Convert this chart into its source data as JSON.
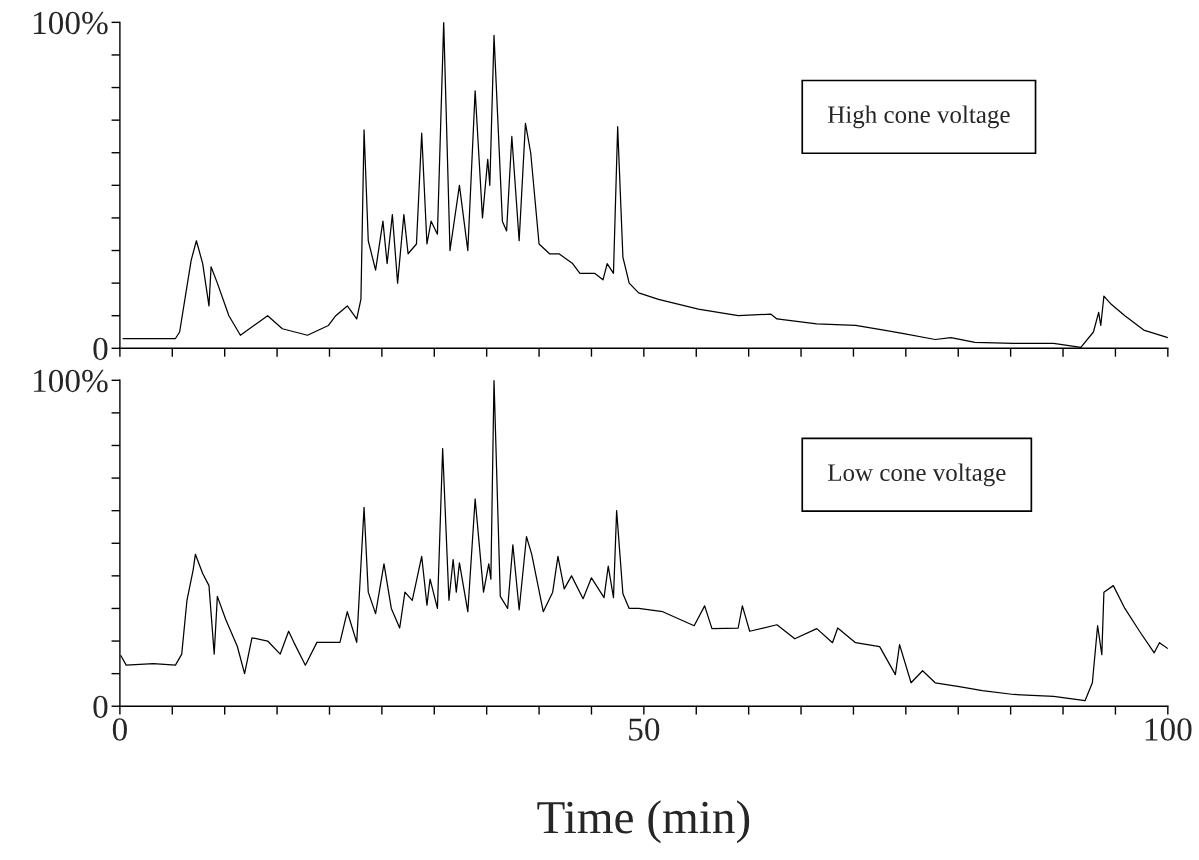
{
  "chart_data": [
    {
      "type": "line",
      "annotations": [
        "High cone voltage"
      ],
      "xlim": [
        0,
        100
      ],
      "ylim": [
        0,
        100
      ],
      "xticks": [
        {
          "value": 0,
          "label": null
        },
        {
          "value": 5,
          "label": null
        },
        {
          "value": 10,
          "label": null
        },
        {
          "value": 15,
          "label": null
        },
        {
          "value": 20,
          "label": null
        },
        {
          "value": 25,
          "label": null
        },
        {
          "value": 30,
          "label": null
        },
        {
          "value": 35,
          "label": null
        },
        {
          "value": 40,
          "label": null
        },
        {
          "value": 45,
          "label": null
        },
        {
          "value": 50,
          "label": null
        },
        {
          "value": 55,
          "label": null
        },
        {
          "value": 60,
          "label": null
        },
        {
          "value": 65,
          "label": null
        },
        {
          "value": 70,
          "label": null
        },
        {
          "value": 75,
          "label": null
        },
        {
          "value": 80,
          "label": null
        },
        {
          "value": 85,
          "label": null
        },
        {
          "value": 90,
          "label": null
        },
        {
          "value": 95,
          "label": null
        },
        {
          "value": 100,
          "label": null
        }
      ],
      "yticks": [
        0,
        {
          "value": 10,
          "label": null
        },
        {
          "value": 20,
          "label": null
        },
        {
          "value": 30,
          "label": null
        },
        {
          "value": 40,
          "label": null
        },
        {
          "value": 50,
          "label": null
        },
        {
          "value": 60,
          "label": null
        },
        {
          "value": 70,
          "label": null
        },
        {
          "value": 80,
          "label": null
        },
        {
          "value": 90,
          "label": null
        },
        {
          "value": 100,
          "label": "100%"
        }
      ],
      "tick_labels": "y",
      "series": [
        {
          "color": "#000000",
          "x": [
            0.3,
            5.3,
            5.7,
            6.3,
            6.8,
            7.3,
            7.9,
            8.5,
            8.7,
            9.3,
            10.4,
            11.5,
            14.1,
            15.5,
            17.9,
            19.9,
            20.6,
            21.7,
            22.6,
            23.0,
            23.3,
            23.7,
            24.4,
            25.1,
            25.5,
            26.0,
            26.5,
            27.1,
            27.5,
            28.3,
            28.8,
            29.3,
            29.7,
            30.3,
            30.9,
            31.5,
            32.4,
            33.2,
            33.9,
            34.6,
            35.1,
            35.3,
            35.7,
            36.5,
            36.9,
            37.4,
            38.1,
            38.7,
            39.2,
            40.0,
            41.0,
            41.9,
            43.2,
            43.9,
            45.3,
            46.1,
            46.5,
            47.1,
            47.5,
            48.0,
            48.6,
            49.5,
            51.4,
            55.2,
            59.0,
            62.1,
            62.7,
            66.5,
            70.2,
            72.9,
            74.8,
            77.8,
            79.3,
            81.6,
            85.3,
            89.1,
            91.7,
            92.9,
            93.4,
            93.6,
            93.9,
            94.6,
            95.9,
            97.7,
            100
          ],
          "values": [
            3,
            3,
            5,
            17,
            27,
            33,
            26,
            13,
            25,
            20,
            10,
            4,
            10,
            6,
            4,
            7,
            10,
            13,
            9,
            15,
            67,
            33,
            24,
            39,
            26,
            41,
            20,
            41,
            29,
            32,
            66,
            32,
            39,
            35,
            100,
            30,
            50,
            30,
            79,
            40,
            58,
            50,
            96,
            39,
            36,
            65,
            33,
            69,
            60,
            32,
            29,
            29,
            26,
            23,
            23,
            21,
            26,
            23,
            68,
            28,
            20,
            17,
            15,
            12,
            10,
            10.5,
            9,
            7.5,
            7,
            5.6,
            4.5,
            2.7,
            3.3,
            1.8,
            1.5,
            1.5,
            0.3,
            5,
            11,
            7,
            16,
            13.5,
            10,
            5.6,
            3.3
          ]
        }
      ]
    },
    {
      "type": "line",
      "annotations": [
        "Low cone voltage"
      ],
      "xlabel": "Time (min)",
      "xlim": [
        0,
        100
      ],
      "ylim": [
        0,
        100
      ],
      "xticks": [
        0,
        {
          "value": 5,
          "label": null
        },
        {
          "value": 10,
          "label": null
        },
        {
          "value": 15,
          "label": null
        },
        {
          "value": 20,
          "label": null
        },
        {
          "value": 25,
          "label": null
        },
        {
          "value": 30,
          "label": null
        },
        {
          "value": 35,
          "label": null
        },
        {
          "value": 40,
          "label": null
        },
        {
          "value": 45,
          "label": null
        },
        50,
        {
          "value": 55,
          "label": null
        },
        {
          "value": 60,
          "label": null
        },
        {
          "value": 65,
          "label": null
        },
        {
          "value": 70,
          "label": null
        },
        {
          "value": 75,
          "label": null
        },
        {
          "value": 80,
          "label": null
        },
        {
          "value": 85,
          "label": null
        },
        {
          "value": 90,
          "label": null
        },
        {
          "value": 95,
          "label": null
        },
        100
      ],
      "yticks": [
        0,
        {
          "value": 10,
          "label": null
        },
        {
          "value": 20,
          "label": null
        },
        {
          "value": 30,
          "label": null
        },
        {
          "value": 40,
          "label": null
        },
        {
          "value": 50,
          "label": null
        },
        {
          "value": 60,
          "label": null
        },
        {
          "value": 70,
          "label": null
        },
        {
          "value": 80,
          "label": null
        },
        {
          "value": 90,
          "label": null
        },
        {
          "value": 100,
          "label": "100%"
        }
      ],
      "series": [
        {
          "color": "#000000",
          "x": [
            0.1,
            0.6,
            3.2,
            5.3,
            5.9,
            6.4,
            7.0,
            7.2,
            7.9,
            8.5,
            9.0,
            9.3,
            10.1,
            11.2,
            11.9,
            12.6,
            14.1,
            15.3,
            16.1,
            16.6,
            17.7,
            18.8,
            21.0,
            21.7,
            22.6,
            23.3,
            23.7,
            24.4,
            25.2,
            25.9,
            26.7,
            27.2,
            27.9,
            28.8,
            29.3,
            29.6,
            30.3,
            30.8,
            31.4,
            31.8,
            32.1,
            32.4,
            33.2,
            33.9,
            34.7,
            35.2,
            35.4,
            35.7,
            36.3,
            37.0,
            37.5,
            38.1,
            38.8,
            39.3,
            40.4,
            41.3,
            41.8,
            42.4,
            43.1,
            44.2,
            45.0,
            46.2,
            46.6,
            47.1,
            47.4,
            48.0,
            48.6,
            49.5,
            51.8,
            54.8,
            55.8,
            56.5,
            59.0,
            59.4,
            60.1,
            62.7,
            64.4,
            66.5,
            68.0,
            68.5,
            70.2,
            72.5,
            74.0,
            74.4,
            75.5,
            76.6,
            77.8,
            80.1,
            82.3,
            85.3,
            89.1,
            92.1,
            92.8,
            93.3,
            93.7,
            93.9,
            94.8,
            95.9,
            97.3,
            98.7,
            99.2,
            100
          ],
          "values": [
            15.5,
            12.6,
            13.1,
            12.6,
            16,
            32.5,
            42,
            46.6,
            40.7,
            37,
            16,
            33.7,
            26.6,
            18.4,
            10,
            21,
            20,
            16,
            23,
            19.6,
            12.6,
            19.6,
            19.6,
            29,
            19.6,
            61,
            35,
            28.4,
            43.7,
            30,
            24,
            35,
            32.5,
            46,
            31,
            39,
            30,
            79,
            32.5,
            45,
            35,
            44,
            29,
            63.6,
            35,
            43.7,
            39,
            100,
            33.7,
            30,
            49.5,
            29.6,
            52,
            46.6,
            29,
            35,
            46,
            36,
            40,
            33,
            39.4,
            33.3,
            43,
            33.3,
            60,
            34.5,
            30,
            30,
            29,
            24.7,
            30.8,
            23.8,
            24,
            30.8,
            23,
            25,
            20.7,
            23.8,
            19.5,
            24,
            19.5,
            18.3,
            9.7,
            18.9,
            7.2,
            10.9,
            7.2,
            6,
            4.8,
            3.6,
            3,
            1.7,
            7.2,
            24.7,
            15.8,
            35,
            37,
            30,
            23,
            16.4,
            19.5,
            17.7
          ]
        }
      ]
    }
  ]
}
